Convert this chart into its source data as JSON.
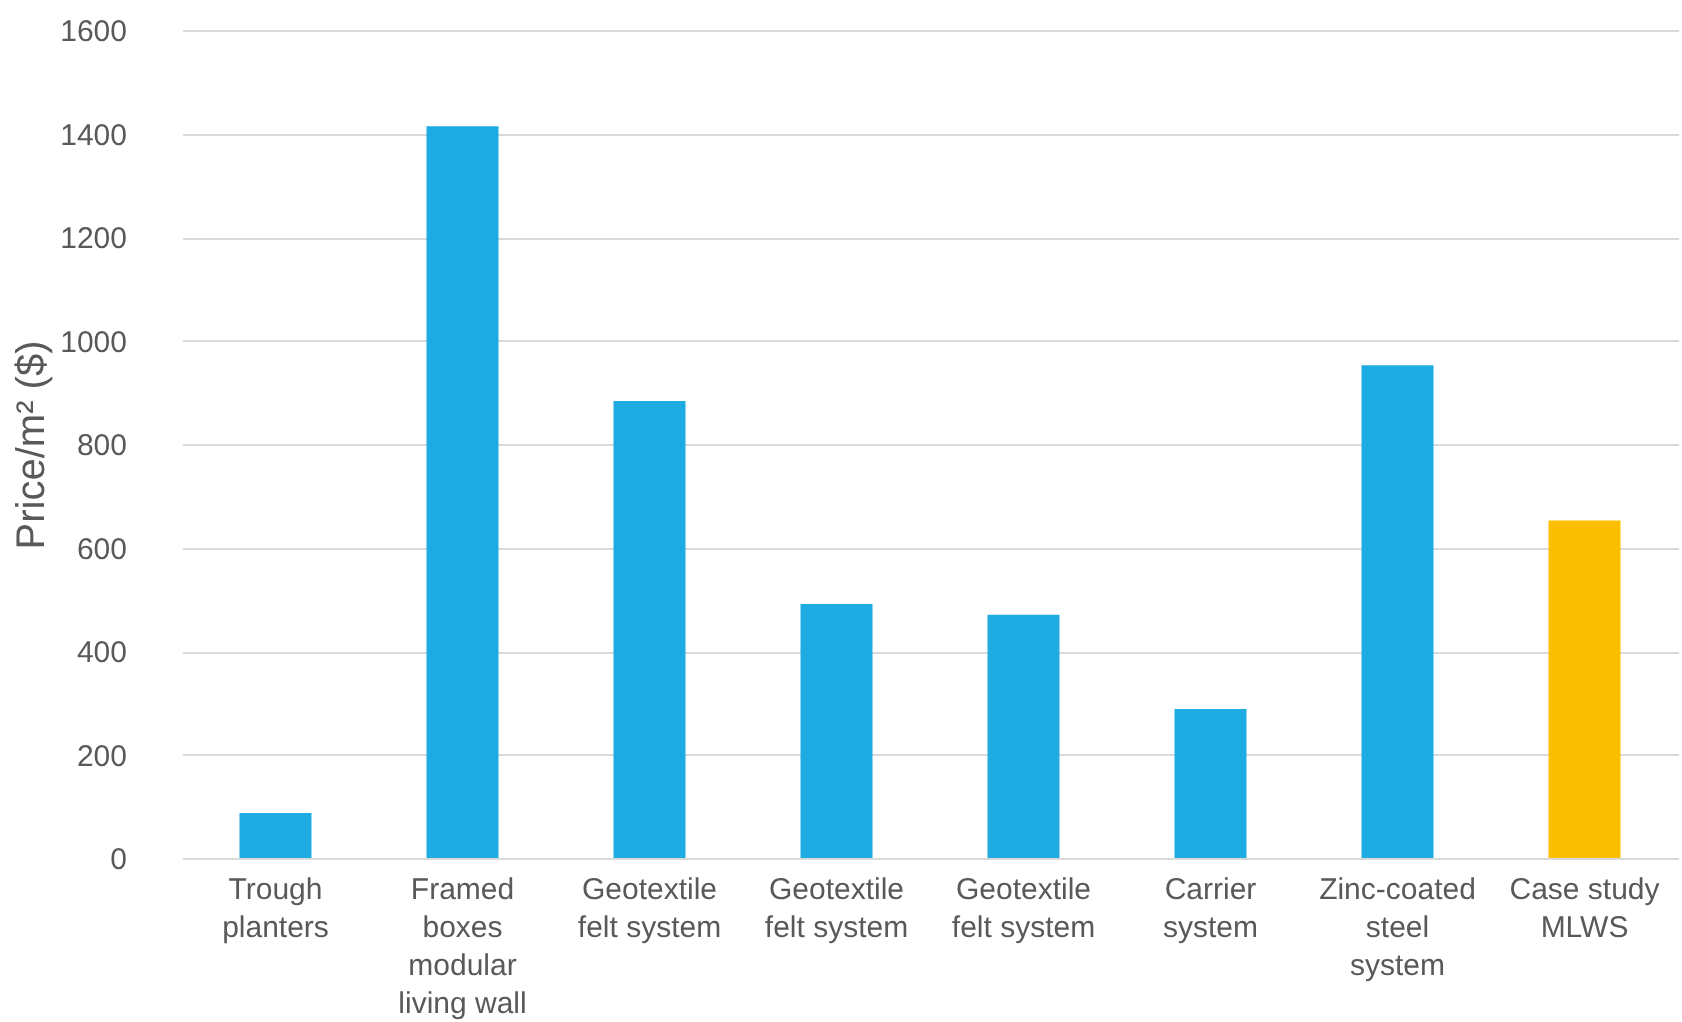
{
  "chart_data": {
    "type": "bar",
    "ylabel": "Price/m² ($)",
    "categories": [
      "Trough\nplanters",
      "Framed\nboxes\nmodular\nliving wall",
      "Geotextile\nfelt system",
      "Geotextile\nfelt system",
      "Geotextile\nfelt system",
      "Carrier\nsystem",
      "Zinc-coated\nsteel\nsystem",
      "Case study\nMLWS"
    ],
    "values": [
      87,
      1414,
      883,
      491,
      470,
      288,
      952,
      652
    ],
    "colors": [
      "#1eabe1",
      "#1eabe1",
      "#1eabe1",
      "#1eabe1",
      "#1eabe1",
      "#1eabe1",
      "#1eabe1",
      "#fcbf00"
    ],
    "ylim": [
      0,
      1600
    ],
    "yticks": [
      0,
      200,
      400,
      600,
      800,
      1000,
      1200,
      1400,
      1600
    ],
    "grid": "y"
  }
}
